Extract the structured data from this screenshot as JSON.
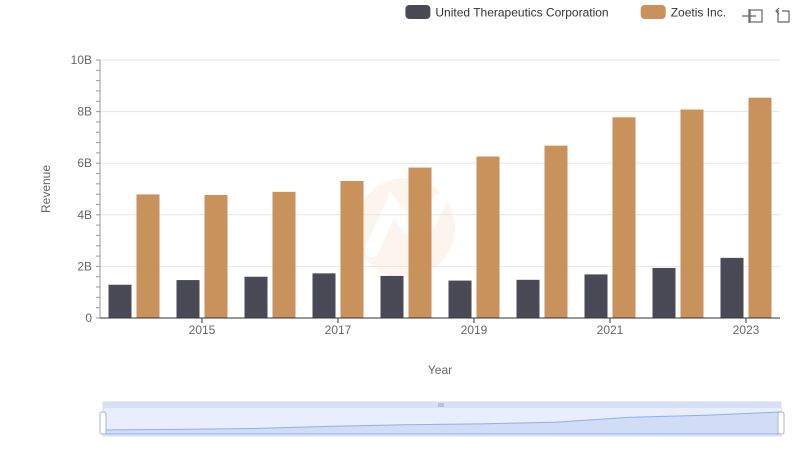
{
  "chart_data": {
    "type": "bar",
    "title": "",
    "xlabel": "Year",
    "ylabel": "Revenue",
    "categories": [
      "2014",
      "2015",
      "2016",
      "2017",
      "2018",
      "2019",
      "2020",
      "2021",
      "2022",
      "2023"
    ],
    "x_tick_labels": [
      "2015",
      "2017",
      "2019",
      "2021",
      "2023"
    ],
    "y_tick_labels": [
      "0",
      "2B",
      "4B",
      "6B",
      "8B",
      "10B"
    ],
    "ylim": [
      0,
      10000000000
    ],
    "series": [
      {
        "name": "United Therapeutics Corporation",
        "color": "#4a4a56",
        "values": [
          1290000000,
          1470000000,
          1600000000,
          1730000000,
          1630000000,
          1450000000,
          1480000000,
          1690000000,
          1940000000,
          2330000000
        ]
      },
      {
        "name": "Zoetis Inc.",
        "color": "#c9915c",
        "values": [
          4790000000,
          4770000000,
          4890000000,
          5310000000,
          5830000000,
          6260000000,
          6680000000,
          7780000000,
          8080000000,
          8540000000
        ]
      }
    ],
    "legend_position": "top-right",
    "grid": true
  }
}
